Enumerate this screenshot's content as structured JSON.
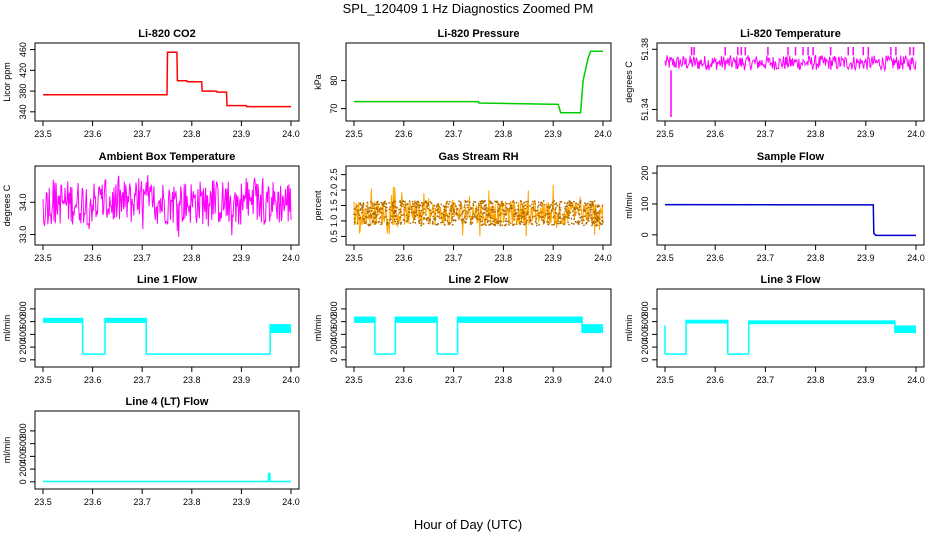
{
  "title": "SPL_120409 1 Hz Diagnostics Zoomed PM",
  "xlabel": "Hour of Day (UTC)",
  "chart_data": [
    {
      "type": "line",
      "title": "Li-820 CO2",
      "ylabel": "Licor ppm",
      "color": "#ff0000",
      "xlim": [
        23.5,
        24.0
      ],
      "xticks": [
        "23.5",
        "23.6",
        "23.7",
        "23.8",
        "23.9",
        "24.0"
      ],
      "ylim": [
        330,
        465
      ],
      "yticks": [
        "340",
        "380",
        "420",
        "460"
      ],
      "series": [
        {
          "x": [
            23.5,
            23.75,
            23.751,
            23.77,
            23.771,
            23.79,
            23.791,
            23.82,
            23.821,
            23.85,
            23.851,
            23.87,
            23.871,
            23.91,
            23.911,
            24.0
          ],
          "y": [
            373,
            373,
            455,
            455,
            400,
            400,
            398,
            398,
            380,
            380,
            378,
            378,
            352,
            352,
            350,
            350
          ]
        }
      ]
    },
    {
      "type": "line",
      "title": "Li-820 Pressure",
      "ylabel": "kPa",
      "color": "#00cc00",
      "xlim": [
        23.5,
        24.0
      ],
      "xticks": [
        "23.5",
        "23.6",
        "23.7",
        "23.8",
        "23.9",
        "24.0"
      ],
      "ylim": [
        67,
        92
      ],
      "yticks": [
        "70",
        "80"
      ],
      "series": [
        {
          "x": [
            23.5,
            23.75,
            23.751,
            23.91,
            23.915,
            23.955,
            23.96,
            23.97,
            23.975,
            24.0
          ],
          "y": [
            72.5,
            72.5,
            72.0,
            71.5,
            68.5,
            68.5,
            80,
            88,
            90.5,
            90.5
          ]
        }
      ]
    },
    {
      "type": "line",
      "title": "Li-820 Temperature",
      "ylabel": "degrees C",
      "color": "#ff00ff",
      "xlim": [
        23.5,
        24.0
      ],
      "xticks": [
        "23.5",
        "23.6",
        "23.7",
        "23.8",
        "23.9",
        "24.0"
      ],
      "ylim": [
        51.335,
        51.3815
      ],
      "yticks": [
        "51.34",
        "51.38"
      ],
      "band": [
        51.366,
        51.376
      ],
      "spikes_hi": [
        23.553,
        23.558,
        23.62,
        23.645,
        23.652,
        23.66,
        23.705,
        23.745,
        23.76,
        23.775,
        23.785,
        23.795,
        23.83,
        23.865,
        23.875,
        23.895,
        23.905,
        23.95,
        23.96,
        23.988,
        23.995
      ],
      "spikes_lo": [
        23.512
      ]
    },
    {
      "type": "line",
      "title": "Ambient Box Temperature",
      "ylabel": "degrees C",
      "color": "#ff00ff",
      "xlim": [
        23.5,
        24.0
      ],
      "xticks": [
        "23.5",
        "23.6",
        "23.7",
        "23.8",
        "23.9",
        "24.0"
      ],
      "ylim": [
        32.8,
        35.0
      ],
      "yticks": [
        "33.0",
        "34.0"
      ],
      "band": [
        33.3,
        34.7
      ],
      "noise": [
        32.9,
        34.9
      ]
    },
    {
      "type": "line",
      "title": "Gas Stream RH",
      "ylabel": "percent",
      "color": "#ffa500",
      "xlim": [
        23.5,
        24.0
      ],
      "xticks": [
        "23.5",
        "23.6",
        "23.7",
        "23.8",
        "23.9",
        "24.0"
      ],
      "ylim": [
        0.35,
        2.65
      ],
      "yticks": [
        "0.5",
        "1.0",
        "1.5",
        "2.0",
        "2.5"
      ],
      "band": [
        0.85,
        1.65
      ],
      "noise": [
        0.5,
        2.2
      ]
    },
    {
      "type": "line",
      "title": "Sample Flow",
      "ylabel": "ml/min",
      "color": "#0000cc",
      "xlim": [
        23.5,
        24.0
      ],
      "xticks": [
        "23.5",
        "23.6",
        "23.7",
        "23.8",
        "23.9",
        "24.0"
      ],
      "ylim": [
        -20,
        210
      ],
      "yticks": [
        "0",
        "100",
        "200"
      ],
      "series": [
        {
          "x": [
            23.5,
            23.915,
            23.916,
            23.92,
            24.0
          ],
          "y": [
            98,
            97,
            5,
            -2,
            -2
          ]
        }
      ]
    },
    {
      "type": "line",
      "title": "Line 1 Flow",
      "ylabel": "ml/min",
      "color": "#00ffff",
      "xlim": [
        23.5,
        24.0
      ],
      "xticks": [
        "23.5",
        "23.6",
        "23.7",
        "23.8",
        "23.9",
        "24.0"
      ],
      "ylim": [
        -50,
        1050
      ],
      "yticks": [
        "0",
        "200",
        "400",
        "600",
        "800"
      ],
      "segments": [
        {
          "x0": 23.5,
          "x1": 23.58,
          "lo": 580,
          "hi": 660
        },
        {
          "x0": 23.58,
          "x1": 23.625,
          "lo": 90,
          "hi": 90
        },
        {
          "x0": 23.625,
          "x1": 23.708,
          "lo": 580,
          "hi": 660
        },
        {
          "x0": 23.708,
          "x1": 23.958,
          "lo": 90,
          "hi": 90
        },
        {
          "x0": 23.958,
          "x1": 24.0,
          "lo": 420,
          "hi": 560
        }
      ]
    },
    {
      "type": "line",
      "title": "Line 2 Flow",
      "ylabel": "ml/min",
      "color": "#00ffff",
      "xlim": [
        23.5,
        24.0
      ],
      "xticks": [
        "23.5",
        "23.6",
        "23.7",
        "23.8",
        "23.9",
        "24.0"
      ],
      "ylim": [
        -50,
        1050
      ],
      "yticks": [
        "0",
        "200",
        "400",
        "600",
        "800"
      ],
      "segments": [
        {
          "x0": 23.5,
          "x1": 23.542,
          "lo": 580,
          "hi": 680
        },
        {
          "x0": 23.542,
          "x1": 23.583,
          "lo": 90,
          "hi": 90
        },
        {
          "x0": 23.583,
          "x1": 23.667,
          "lo": 580,
          "hi": 680
        },
        {
          "x0": 23.667,
          "x1": 23.708,
          "lo": 90,
          "hi": 90
        },
        {
          "x0": 23.708,
          "x1": 23.958,
          "lo": 580,
          "hi": 680
        },
        {
          "x0": 23.958,
          "x1": 24.0,
          "lo": 420,
          "hi": 560
        }
      ]
    },
    {
      "type": "line",
      "title": "Line 3 Flow",
      "ylabel": "ml/min",
      "color": "#00ffff",
      "xlim": [
        23.5,
        24.0
      ],
      "xticks": [
        "23.5",
        "23.6",
        "23.7",
        "23.8",
        "23.9",
        "24.0"
      ],
      "ylim": [
        -50,
        1050
      ],
      "yticks": [
        "0",
        "200",
        "400",
        "600",
        "800"
      ],
      "segments": [
        {
          "x0": 23.5,
          "x1": 23.542,
          "lo": 90,
          "hi": 90
        },
        {
          "x0": 23.542,
          "x1": 23.625,
          "lo": 570,
          "hi": 630
        },
        {
          "x0": 23.625,
          "x1": 23.667,
          "lo": 90,
          "hi": 90
        },
        {
          "x0": 23.667,
          "x1": 23.958,
          "lo": 560,
          "hi": 620
        },
        {
          "x0": 23.958,
          "x1": 24.0,
          "lo": 420,
          "hi": 540
        }
      ],
      "start_spike": 540
    },
    {
      "type": "line",
      "title": "Line 4 (LT) Flow",
      "ylabel": "ml/min",
      "color": "#00ffff",
      "xlim": [
        23.5,
        24.0
      ],
      "xticks": [
        "23.5",
        "23.6",
        "23.7",
        "23.8",
        "23.9",
        "24.0"
      ],
      "ylim": [
        -50,
        1050
      ],
      "yticks": [
        "0",
        "200",
        "400",
        "600",
        "800"
      ],
      "series": [
        {
          "x": [
            23.5,
            23.954,
            23.955,
            23.957,
            23.958,
            24.0
          ],
          "y": [
            5,
            5,
            130,
            130,
            5,
            5
          ]
        }
      ]
    }
  ]
}
